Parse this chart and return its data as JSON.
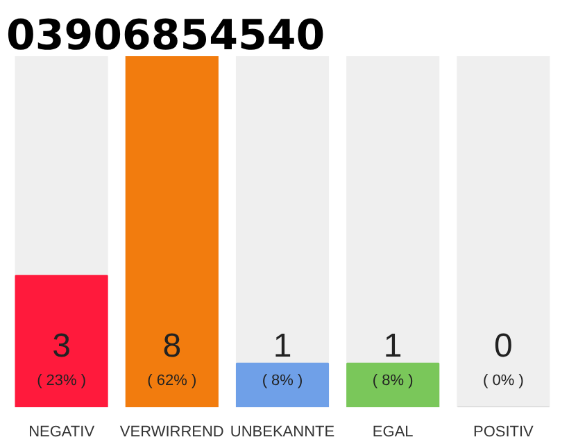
{
  "chart_data": {
    "type": "bar",
    "title": "03906854540",
    "categories": [
      "NEGATIV",
      "VERWIRREND",
      "UNBEKANNTE",
      "EGAL",
      "POSITIV"
    ],
    "values": [
      3,
      8,
      1,
      1,
      0
    ],
    "colors": [
      "#ff1a3c",
      "#f27c0e",
      "#6fa0e8",
      "#7ac75a",
      "#cccccc"
    ],
    "value_labels": [
      "3",
      "8",
      "1",
      "1",
      "0"
    ],
    "annotations": [
      {
        "text": "( 23% )",
        "x": "NEGATIV",
        "y": 0
      },
      {
        "text": "( 62% )",
        "x": "VERWIRREND",
        "y": 0
      },
      {
        "text": "( 8% )",
        "x": "UNBEKANNTE",
        "y": 0
      },
      {
        "text": "( 8% )",
        "x": "EGAL",
        "y": 0
      },
      {
        "text": "( 0% )",
        "x": "POSITIV",
        "y": 0
      }
    ]
  }
}
